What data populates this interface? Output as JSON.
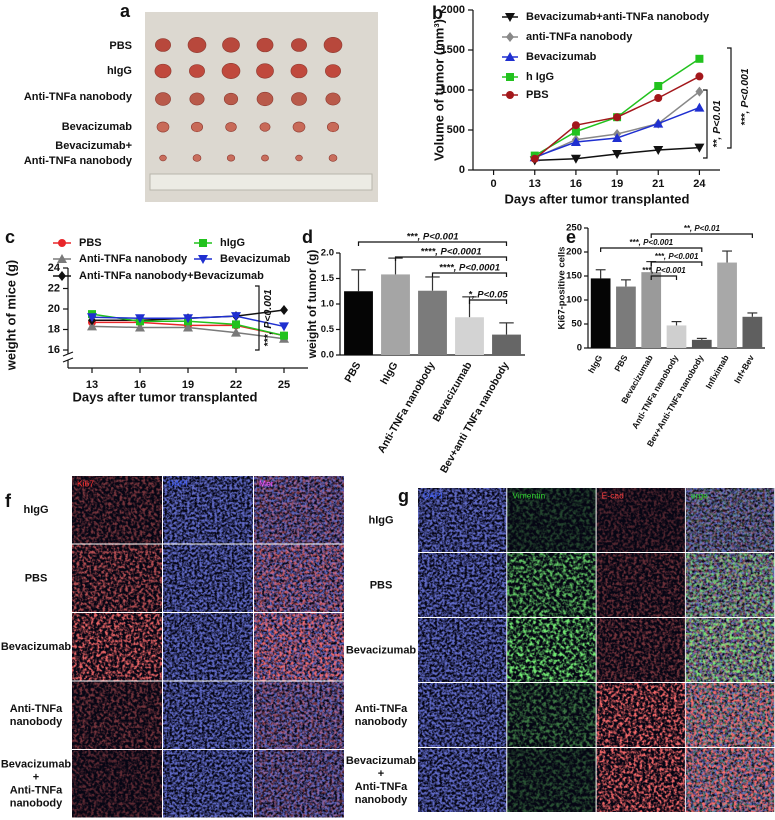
{
  "panel_labels": [
    "a",
    "b",
    "c",
    "d",
    "e",
    "f",
    "g"
  ],
  "photo_a": {
    "rows": [
      [
        "PBS"
      ],
      [
        "hIgG"
      ],
      [
        "Anti-TNFa nanobody"
      ],
      [
        "Bevacizumab"
      ],
      [
        "Bevacizumab+",
        "Anti-TNFa nanobody"
      ]
    ]
  },
  "chart_data": [
    {
      "type": "line",
      "y_label": "Volume of tumor (mm³)",
      "x_label": "Days after tumor transplanted",
      "categories": [
        "0",
        "13",
        "16",
        "19",
        "21",
        "24"
      ],
      "series": [
        {
          "name": "Bevacizumab+anti-TNFa nanobody",
          "color": "#111111",
          "marker": "down-triangle",
          "values": [
            null,
            120,
            140,
            200,
            250,
            280
          ]
        },
        {
          "name": "anti-TNFa nanobody",
          "color": "#888888",
          "marker": "diamond",
          "values": [
            null,
            150,
            380,
            450,
            580,
            980
          ]
        },
        {
          "name": "Bevacizumab",
          "color": "#1f2fd0",
          "marker": "triangle",
          "values": [
            null,
            160,
            350,
            400,
            580,
            780
          ]
        },
        {
          "name": "h IgG",
          "color": "#22c21e",
          "marker": "square",
          "values": [
            null,
            180,
            480,
            660,
            1050,
            1390
          ]
        },
        {
          "name": "PBS",
          "color": "#a3171b",
          "marker": "circle",
          "values": [
            null,
            140,
            560,
            660,
            900,
            1170
          ]
        }
      ],
      "ylim": [
        0,
        2000
      ],
      "yticks": [
        0,
        500,
        1000,
        1500,
        2000
      ],
      "legend": "top-left",
      "annotations": [
        "**, P<0.01",
        "***, P<0.001"
      ]
    },
    {
      "type": "line",
      "y_label": "weight of mice (g)",
      "x_label": "Days after tumor transplanted",
      "categories": [
        "13",
        "16",
        "19",
        "22",
        "25"
      ],
      "series": [
        {
          "name": "PBS",
          "color": "#e8262a",
          "marker": "circle",
          "values": [
            18.7,
            18.7,
            18.4,
            18.4,
            17.4
          ]
        },
        {
          "name": "Anti-TNFa nanobody",
          "color": "#7a7a7a",
          "marker": "triangle",
          "values": [
            18.3,
            18.2,
            18.2,
            17.7,
            17.1
          ]
        },
        {
          "name": "Anti-TNFa nanobody+Bevacizumab",
          "color": "#111111",
          "marker": "diamond",
          "values": [
            18.9,
            18.9,
            19.1,
            19.3,
            19.9
          ]
        },
        {
          "name": "hIgG",
          "color": "#22c21e",
          "marker": "square",
          "values": [
            19.5,
            18.8,
            18.8,
            18.5,
            17.4
          ]
        },
        {
          "name": "Bevacizumab",
          "color": "#1f2fd0",
          "marker": "down-triangle",
          "values": [
            19.2,
            19.1,
            19.1,
            19.3,
            18.3
          ]
        }
      ],
      "ylim": [
        16,
        24
      ],
      "yticks": [
        16,
        18,
        20,
        22,
        24
      ],
      "legend": "top",
      "annotations": [
        "***, P<0.001"
      ]
    },
    {
      "type": "bar",
      "y_label": "weight of tumor (g)",
      "categories": [
        "PBS",
        "hIgG",
        "Anti-TNFa nanobody",
        "Bevacizumab",
        "Bev+anti TNFa nanobody"
      ],
      "values": [
        1.25,
        1.58,
        1.26,
        0.74,
        0.4
      ],
      "errors": [
        0.42,
        0.32,
        0.27,
        0.4,
        0.23
      ],
      "colors": [
        "#050505",
        "#a5a5a5",
        "#7b7b7b",
        "#d3d3d3",
        "#666666"
      ],
      "ylim": [
        0,
        2
      ],
      "yticks": [
        {
          "value": 0,
          "label": "0.0"
        },
        0.5,
        {
          "value": 1,
          "label": "1.0"
        },
        1.5,
        {
          "value": 2,
          "label": "2.0"
        }
      ],
      "annotations": [
        "***, P<0.001",
        "****, P<0.0001",
        "****, P<0.0001",
        "*, P<0.05"
      ]
    },
    {
      "type": "bar",
      "y_label": "Ki67-positive cells",
      "categories": [
        "hIgG",
        "PBS",
        "Bevacizumab",
        "Anti-TNFa nanobody",
        "Bev+Anti-TNFa nanobody",
        "Infiximab",
        "Inf+Bev"
      ],
      "values": [
        145,
        128,
        158,
        47,
        17,
        178,
        65
      ],
      "errors": [
        18,
        14,
        22,
        8,
        3,
        24,
        8
      ],
      "colors": [
        "#050505",
        "#7b7b7b",
        "#9a9a9a",
        "#cfcfcf",
        "#555555",
        "#a8a8a8",
        "#5f5f5f"
      ],
      "ylim": [
        0,
        250
      ],
      "yticks": [
        0,
        50,
        100,
        150,
        200,
        250
      ],
      "annotations": [
        "**, P<0.01",
        "***, P<0.001",
        "***, P<0.001",
        "***, P<0.001"
      ]
    }
  ],
  "panel_f": {
    "channels": [
      "Ki67",
      "DAPI",
      "Mer"
    ],
    "rows": [
      [
        "hIgG"
      ],
      [
        "PBS"
      ],
      [
        "Bevacizumab"
      ],
      [
        "Anti-TNFa",
        "nanobody"
      ],
      [
        "Bevacizumab",
        "+",
        "Anti-TNFa",
        "nanobody"
      ]
    ]
  },
  "panel_g": {
    "channels": [
      "DAPI",
      "Vimentin",
      "E-cad",
      "erge"
    ],
    "rows": [
      [
        "hIgG"
      ],
      [
        "PBS"
      ],
      [
        "Bevacizumab"
      ],
      [
        "Anti-TNFa",
        "nanobody"
      ],
      [
        "Bevacizumab",
        "+",
        "Anti-TNFa",
        "nanobody"
      ]
    ]
  }
}
